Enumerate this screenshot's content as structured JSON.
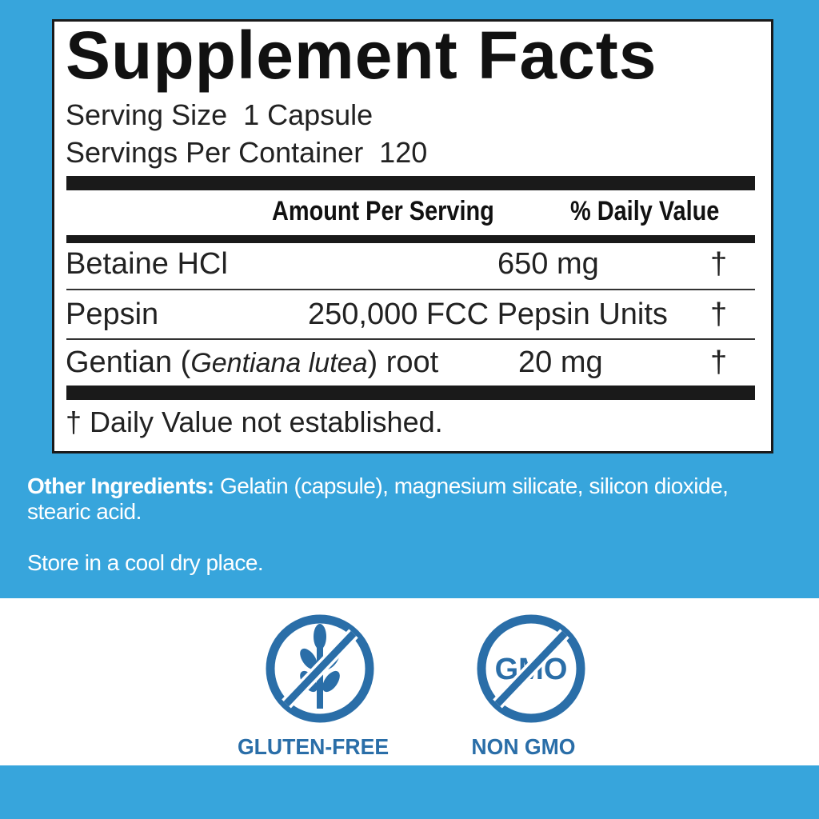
{
  "facts": {
    "title": "Supplement Facts",
    "serving_size": "Serving Size  1 Capsule",
    "servings_per_container": "Servings Per Container  120",
    "header_amount": "Amount Per Serving",
    "header_dv": "% Daily Value",
    "rows": [
      {
        "name": "Betaine HCl",
        "amount": "650 mg",
        "dv": "†"
      },
      {
        "name": "Pepsin",
        "amount": "250,000 FCC Pepsin Units",
        "dv": "†"
      },
      {
        "name_pre": "Gentian (",
        "name_italic": "Gentiana lutea",
        "name_post": ") root",
        "amount": "20 mg",
        "dv": "†"
      }
    ],
    "footnote": "† Daily Value not established."
  },
  "other_ingredients": {
    "label": "Other Ingredients:",
    "text": " Gelatin (capsule), magnesium silicate, silicon dioxide, stearic acid."
  },
  "storage": "Store in a cool dry place.",
  "badges": [
    {
      "icon": "gluten-free-icon",
      "label": "GLUTEN-FREE"
    },
    {
      "icon": "non-gmo-icon",
      "label": "NON GMO",
      "icon_text": "GMO"
    }
  ],
  "colors": {
    "background_blue": "#37a5dc",
    "icon_blue": "#2a6ea8"
  }
}
